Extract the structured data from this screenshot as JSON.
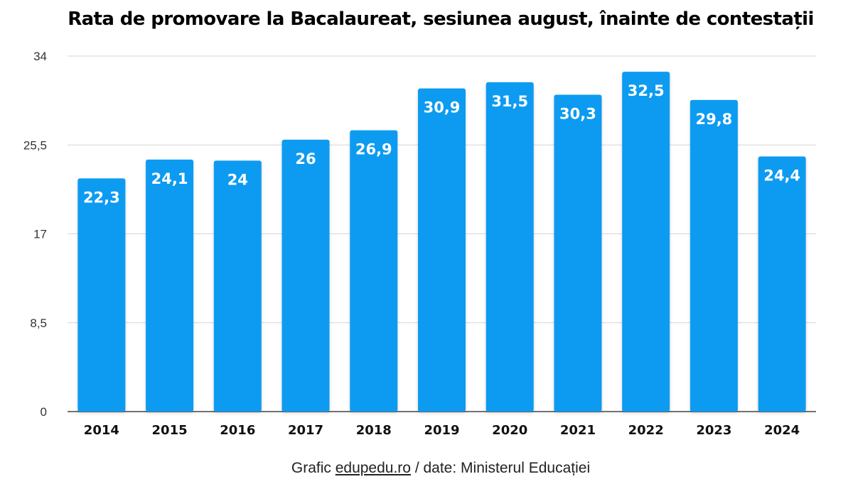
{
  "chart_data": {
    "type": "bar",
    "title": "Rata de promovare la Bacalaureat, sesiunea august, înainte de contestații",
    "categories": [
      "2014",
      "2015",
      "2016",
      "2017",
      "2018",
      "2019",
      "2020",
      "2021",
      "2022",
      "2023",
      "2024"
    ],
    "values": [
      22.3,
      24.1,
      24,
      26,
      26.9,
      30.9,
      31.5,
      30.3,
      32.5,
      29.8,
      24.4
    ],
    "data_labels": [
      "22,3",
      "24,1",
      "24",
      "26",
      "26,9",
      "30,9",
      "31,5",
      "30,3",
      "32,5",
      "29,8",
      "24,4"
    ],
    "y_ticks": [
      0,
      8.5,
      17,
      25.5,
      34
    ],
    "y_tick_labels": [
      "0",
      "8,5",
      "17",
      "25,5",
      "34"
    ],
    "ylim": [
      0,
      34
    ],
    "xlabel": "",
    "ylabel": "",
    "grid": true,
    "bar_color": "#0d9bf1"
  },
  "footer": {
    "prefix": "Grafic ",
    "link_text": "edupedu.ro",
    "suffix": " / date: Ministerul Educației"
  }
}
